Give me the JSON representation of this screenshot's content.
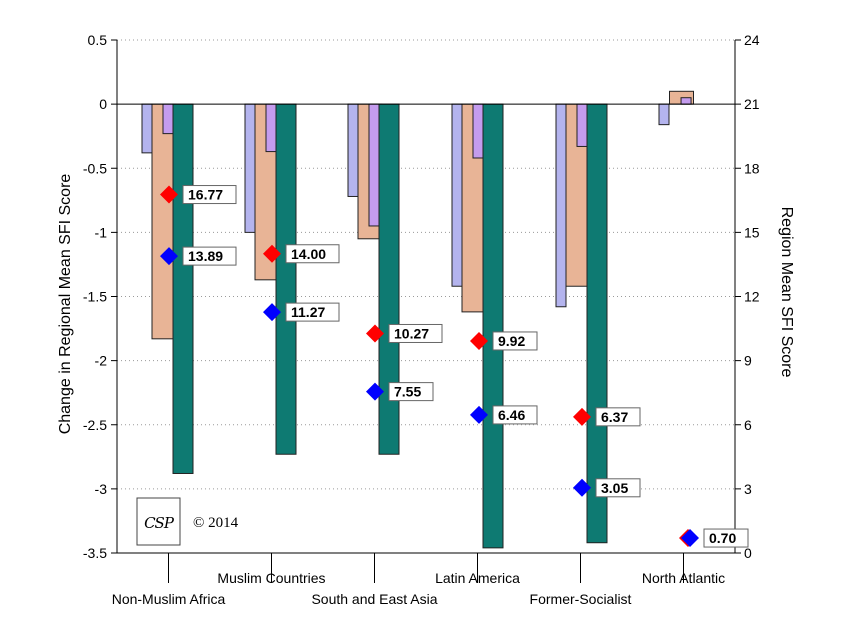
{
  "chart_data": {
    "type": "bar",
    "ylabel_left": "Change in Regional Mean SFI Score",
    "ylabel_right": "Region Mean SFI Score",
    "ylim_left": [
      -3.5,
      0.5
    ],
    "ylim_right": [
      0,
      24
    ],
    "yticks_left": [
      "0.5",
      "0",
      "-0.5",
      "-1",
      "-1.5",
      "-2",
      "-2.5",
      "-3",
      "-3.5"
    ],
    "yticks_right": [
      "24",
      "21",
      "18",
      "15",
      "12",
      "9",
      "6",
      "3",
      "0"
    ],
    "categories": [
      "Non-Muslim Africa",
      "Muslim Countries",
      "South and East Asia",
      "Latin America",
      "Former-Socialist",
      "North Atlantic"
    ],
    "bar_series": [
      {
        "color": "#b4b4ee",
        "values": [
          -0.38,
          -1.0,
          -0.72,
          -1.42,
          -1.58,
          -0.16
        ]
      },
      {
        "color": "#e8b496",
        "values": [
          -1.83,
          -1.37,
          -1.05,
          -1.62,
          -1.42,
          0.1
        ]
      },
      {
        "color": "#c49cee",
        "values": [
          -0.23,
          -0.37,
          -0.95,
          -0.42,
          -0.33,
          0.05
        ]
      },
      {
        "color": "#0e7a72",
        "values": [
          -2.88,
          -2.73,
          -2.73,
          -3.46,
          -3.42,
          0.0
        ]
      }
    ],
    "markers": [
      {
        "color": "#ff0000",
        "values": [
          16.77,
          14.0,
          10.27,
          9.92,
          6.37,
          0.7
        ],
        "labels": [
          "16.77",
          "14.00",
          "10.27",
          "9.92",
          "6.37",
          ""
        ]
      },
      {
        "color": "#0000ff",
        "values": [
          13.89,
          11.27,
          7.55,
          6.46,
          3.05,
          0.7
        ],
        "labels": [
          "13.89",
          "11.27",
          "7.55",
          "6.46",
          "3.05",
          "0.70"
        ]
      }
    ],
    "grid": "horizontal dotted"
  },
  "logo": {
    "text": "CSP"
  },
  "copyright": "© 2014"
}
